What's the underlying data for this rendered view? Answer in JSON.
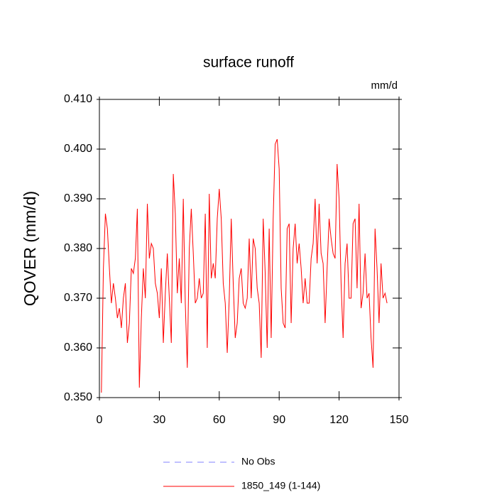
{
  "chart_data": {
    "type": "line",
    "title": "surface runoff",
    "units_label": "mm/d",
    "ylabel": "QOVER  (mm/d)",
    "x": [
      1,
      2,
      3,
      4,
      5,
      6,
      7,
      8,
      9,
      10,
      11,
      12,
      13,
      14,
      15,
      16,
      17,
      18,
      19,
      20,
      21,
      22,
      23,
      24,
      25,
      26,
      27,
      28,
      29,
      30,
      31,
      32,
      33,
      34,
      35,
      36,
      37,
      38,
      39,
      40,
      41,
      42,
      43,
      44,
      45,
      46,
      47,
      48,
      49,
      50,
      51,
      52,
      53,
      54,
      55,
      56,
      57,
      58,
      59,
      60,
      61,
      62,
      63,
      64,
      65,
      66,
      67,
      68,
      69,
      70,
      71,
      72,
      73,
      74,
      75,
      76,
      77,
      78,
      79,
      80,
      81,
      82,
      83,
      84,
      85,
      86,
      87,
      88,
      89,
      90,
      91,
      92,
      93,
      94,
      95,
      96,
      97,
      98,
      99,
      100,
      101,
      102,
      103,
      104,
      105,
      106,
      107,
      108,
      109,
      110,
      111,
      112,
      113,
      114,
      115,
      116,
      117,
      118,
      119,
      120,
      121,
      122,
      123,
      124,
      125,
      126,
      127,
      128,
      129,
      130,
      131,
      132,
      133,
      134,
      135,
      136,
      137,
      138,
      139,
      140,
      141,
      142,
      143,
      144
    ],
    "series": [
      {
        "name": "1850_149 (1-144)",
        "color": "#ff0000",
        "values": [
          0.351,
          0.376,
          0.387,
          0.384,
          0.376,
          0.369,
          0.373,
          0.37,
          0.366,
          0.368,
          0.364,
          0.37,
          0.373,
          0.361,
          0.365,
          0.376,
          0.375,
          0.378,
          0.388,
          0.352,
          0.366,
          0.376,
          0.37,
          0.389,
          0.378,
          0.381,
          0.38,
          0.373,
          0.371,
          0.366,
          0.376,
          0.361,
          0.371,
          0.379,
          0.37,
          0.361,
          0.395,
          0.387,
          0.371,
          0.378,
          0.369,
          0.39,
          0.369,
          0.356,
          0.38,
          0.388,
          0.379,
          0.369,
          0.37,
          0.374,
          0.37,
          0.371,
          0.387,
          0.36,
          0.391,
          0.374,
          0.377,
          0.374,
          0.386,
          0.392,
          0.386,
          0.373,
          0.369,
          0.359,
          0.37,
          0.386,
          0.373,
          0.362,
          0.365,
          0.374,
          0.376,
          0.369,
          0.368,
          0.37,
          0.382,
          0.37,
          0.382,
          0.38,
          0.372,
          0.369,
          0.358,
          0.386,
          0.375,
          0.36,
          0.384,
          0.362,
          0.386,
          0.401,
          0.402,
          0.396,
          0.372,
          0.365,
          0.364,
          0.384,
          0.385,
          0.365,
          0.38,
          0.385,
          0.377,
          0.381,
          0.376,
          0.369,
          0.374,
          0.369,
          0.369,
          0.378,
          0.381,
          0.39,
          0.377,
          0.389,
          0.379,
          0.377,
          0.365,
          0.376,
          0.386,
          0.382,
          0.379,
          0.378,
          0.397,
          0.39,
          0.373,
          0.362,
          0.377,
          0.381,
          0.37,
          0.37,
          0.385,
          0.386,
          0.372,
          0.389,
          0.368,
          0.371,
          0.379,
          0.37,
          0.371,
          0.362,
          0.356,
          0.384,
          0.376,
          0.365,
          0.377,
          0.37,
          0.371,
          0.369
        ]
      }
    ],
    "no_obs_entry": {
      "name": "No Obs",
      "color": "#8080ff",
      "dash": "9 7"
    },
    "xlim": [
      0,
      150
    ],
    "xticks": [
      0,
      30,
      60,
      90,
      120,
      150
    ],
    "ylim": [
      0.35,
      0.41
    ],
    "yticks": [
      {
        "value": 0.35,
        "label": "0.350"
      },
      {
        "value": 0.36,
        "label": "0.360"
      },
      {
        "value": 0.37,
        "label": "0.370"
      },
      {
        "value": 0.38,
        "label": "0.380"
      },
      {
        "value": 0.39,
        "label": "0.390"
      },
      {
        "value": 0.4,
        "label": "0.400"
      },
      {
        "value": 0.41,
        "label": "0.410"
      }
    ]
  }
}
